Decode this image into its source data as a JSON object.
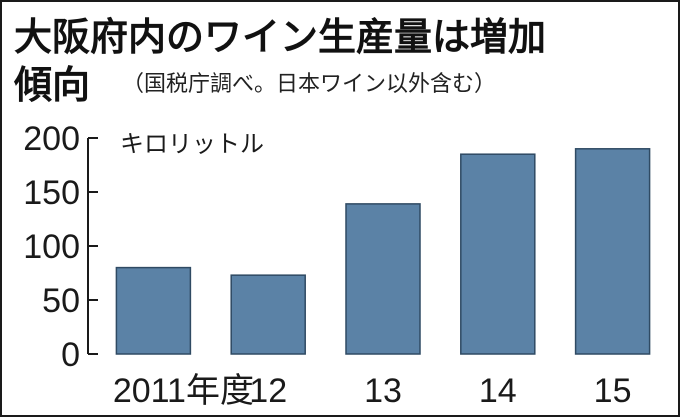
{
  "chart_data": {
    "type": "bar",
    "title": "大阪府内のワイン生産量は増加",
    "title_line2": "傾向",
    "subtitle": "（国税庁調べ。日本ワイン以外含む）",
    "ylabel": "キロリットル",
    "xlabel": "",
    "categories": [
      "2011年度",
      "12",
      "13",
      "14",
      "15"
    ],
    "values": [
      80,
      73,
      139,
      185,
      190
    ],
    "ylim": [
      0,
      200
    ],
    "yticks": [
      "0",
      "50",
      "100",
      "150",
      "200"
    ],
    "ytick_values": [
      0,
      50,
      100,
      150,
      200
    ],
    "grid": false,
    "legend": "none",
    "bar_color": "#5b82a6",
    "bar_edge_color": "#2f4a63"
  }
}
